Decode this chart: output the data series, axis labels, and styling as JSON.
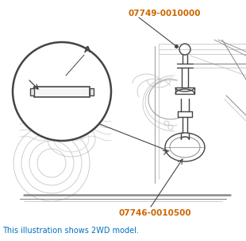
{
  "bg_color": "#ffffff",
  "label_top": "07749-0010000",
  "label_bottom": "07746-0010500",
  "label_A": "A",
  "caption": "This illustration shows 2WD model.",
  "caption_color": "#0070c0",
  "label_color": "#cc6600",
  "figsize": [
    3.1,
    3.03
  ],
  "dpi": 100
}
